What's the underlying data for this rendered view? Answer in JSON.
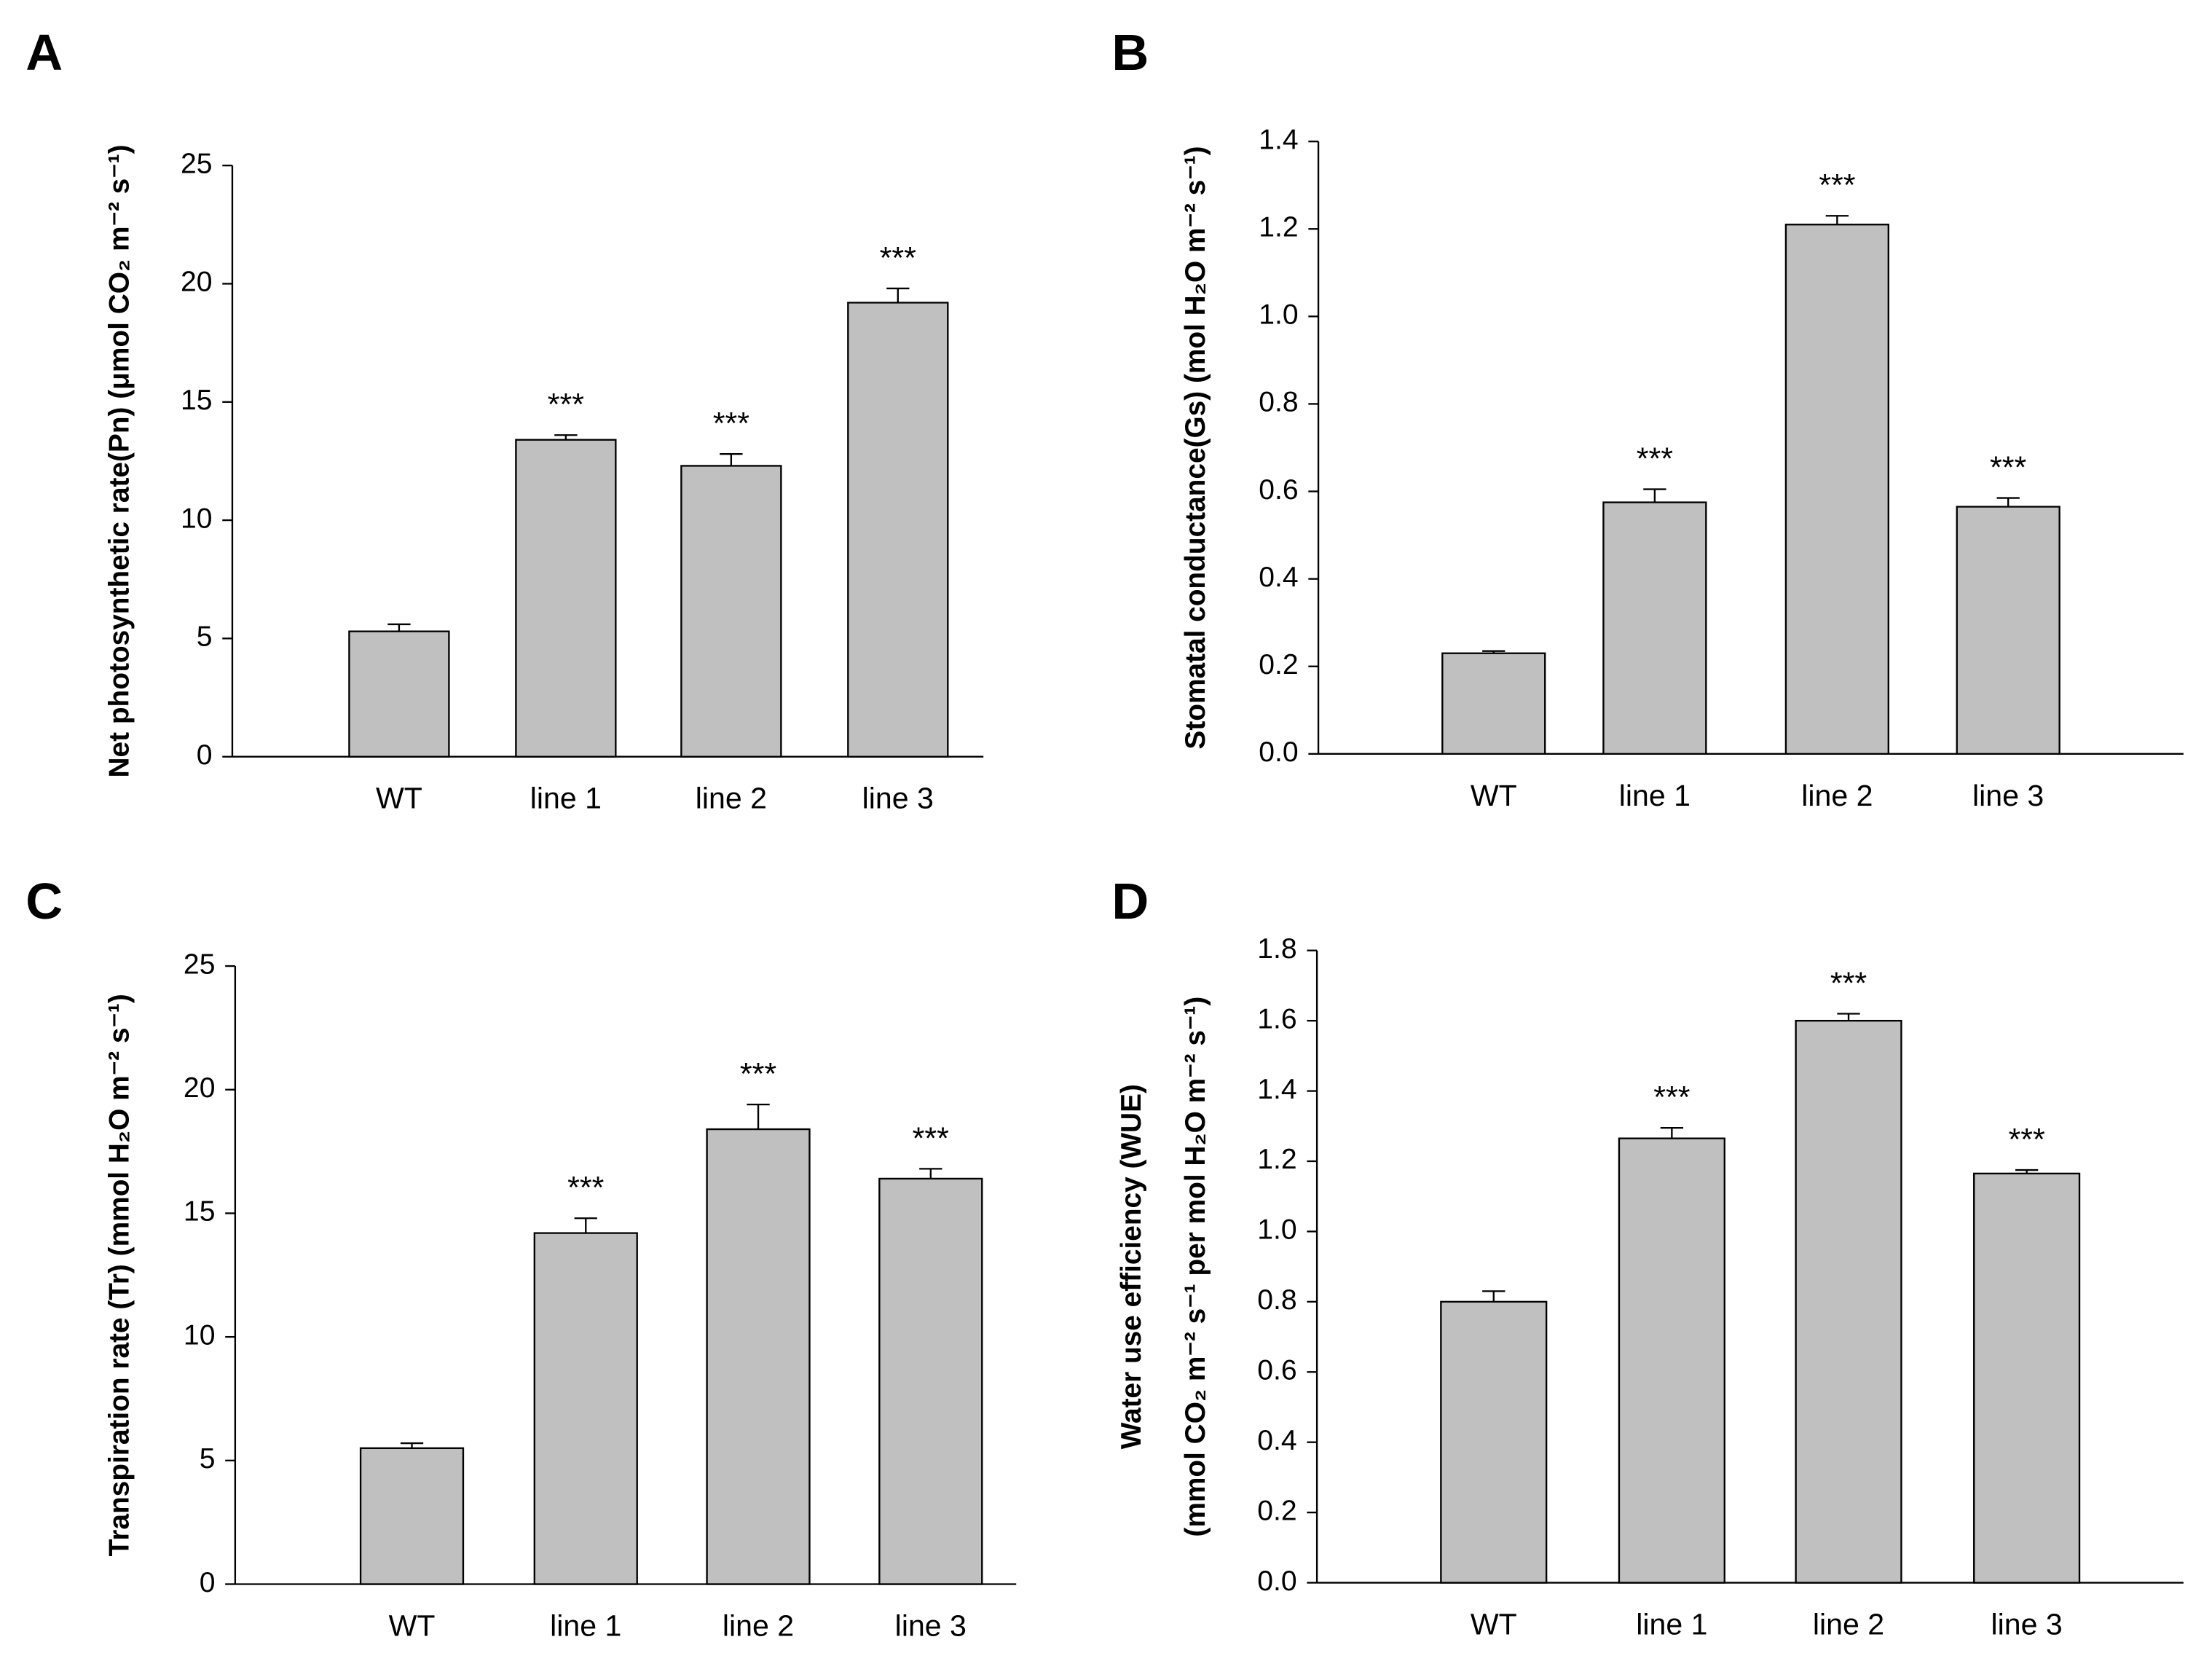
{
  "chart_data": [
    {
      "type": "bar",
      "panel": "A",
      "ylabel": [
        "Net photosynthetic rate(Pn) (μmol CO₂ m⁻² s⁻¹)"
      ],
      "categories": [
        "WT",
        "line 1",
        "line 2",
        "line 3"
      ],
      "values": [
        5.3,
        13.4,
        12.3,
        19.2
      ],
      "errors": [
        0.3,
        0.2,
        0.5,
        0.6
      ],
      "annotations": [
        null,
        "***",
        "***",
        "***"
      ],
      "color": "#c0c0c0",
      "ylim": [
        0,
        25
      ],
      "yticks": [
        0,
        5,
        10,
        15,
        20,
        25
      ]
    },
    {
      "type": "bar",
      "panel": "B",
      "ylabel": [
        "Stomatal conductance(Gs) (mol H₂O m⁻² s⁻¹)"
      ],
      "categories": [
        "WT",
        "line 1",
        "line 2",
        "line 3"
      ],
      "values": [
        0.23,
        0.575,
        1.21,
        0.565
      ],
      "errors": [
        0.005,
        0.03,
        0.02,
        0.02
      ],
      "annotations": [
        null,
        "***",
        "***",
        "***"
      ],
      "color": "#c0c0c0",
      "ylim": [
        0,
        1.4
      ],
      "yticks": [
        {
          "value": 0,
          "label": "0.0"
        },
        0.2,
        0.4,
        0.6,
        0.8,
        {
          "value": 1,
          "label": "1.0"
        },
        1.2,
        1.4
      ]
    },
    {
      "type": "bar",
      "panel": "C",
      "ylabel": [
        "Transpiration rate (Tr) (mmol H₂O m⁻² s⁻¹)"
      ],
      "categories": [
        "WT",
        "line 1",
        "line 2",
        "line 3"
      ],
      "values": [
        5.5,
        14.2,
        18.4,
        16.4
      ],
      "errors": [
        0.2,
        0.6,
        1.0,
        0.4
      ],
      "annotations": [
        null,
        "***",
        "***",
        "***"
      ],
      "color": "#c0c0c0",
      "ylim": [
        0,
        25
      ],
      "yticks": [
        0,
        5,
        10,
        15,
        20,
        25
      ]
    },
    {
      "type": "bar",
      "panel": "D",
      "ylabel": [
        "Water use efficiency (WUE)",
        "(mmol CO₂ m⁻² s⁻¹ per mol H₂O m⁻² s⁻¹)"
      ],
      "categories": [
        "WT",
        "line 1",
        "line 2",
        "line 3"
      ],
      "values": [
        0.8,
        1.265,
        1.6,
        1.165
      ],
      "errors": [
        0.03,
        0.03,
        0.02,
        0.01
      ],
      "annotations": [
        null,
        "***",
        "***",
        "***"
      ],
      "color": "#c0c0c0",
      "ylim": [
        0,
        1.8
      ],
      "yticks": [
        {
          "value": 0,
          "label": "0.0"
        },
        0.2,
        0.4,
        0.6,
        0.8,
        {
          "value": 1,
          "label": "1.0"
        },
        1.2,
        1.4,
        1.6,
        1.8
      ]
    }
  ]
}
